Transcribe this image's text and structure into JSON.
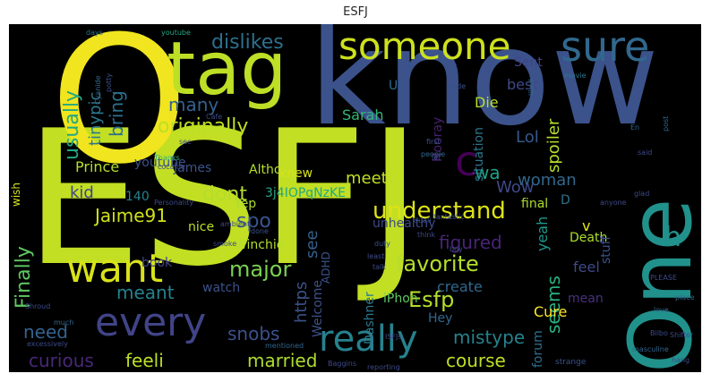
{
  "figure": {
    "title": "ESFJ"
  },
  "wordcloud": {
    "background": "#000000",
    "words": [
      {
        "text": "ESFJ",
        "color": "#c2df23"
      },
      {
        "text": "know",
        "color": "#3b528b"
      },
      {
        "text": "O",
        "color": "#f0e51e"
      },
      {
        "text": "One",
        "color": "#21918c"
      },
      {
        "text": "tag",
        "color": "#bddf26"
      },
      {
        "text": "someone",
        "color": "#cde11d"
      },
      {
        "text": "sure",
        "color": "#31688e"
      },
      {
        "text": "want",
        "color": "#d8e219"
      },
      {
        "text": "every",
        "color": "#414487"
      },
      {
        "text": "really",
        "color": "#26828e"
      },
      {
        "text": "understand",
        "color": "#dde318"
      },
      {
        "text": "favorite",
        "color": "#b5de2b"
      },
      {
        "text": "c",
        "color": "#440154"
      },
      {
        "text": "h",
        "color": "#21918c"
      },
      {
        "text": "Esfp",
        "color": "#b5de2b"
      },
      {
        "text": "Jaime91",
        "color": "#d0e11c"
      },
      {
        "text": "dont",
        "color": "#b5de2b"
      },
      {
        "text": "spo",
        "color": "#3a548c"
      },
      {
        "text": "major",
        "color": "#7ad151"
      },
      {
        "text": "meant",
        "color": "#26828e"
      },
      {
        "text": "originally",
        "color": "#bddf26"
      },
      {
        "text": "many",
        "color": "#34618d"
      },
      {
        "text": "dislikes",
        "color": "#2d708e"
      },
      {
        "text": "bring",
        "color": "#2d708e"
      },
      {
        "text": "usually",
        "color": "#22a884"
      },
      {
        "text": "tinypic",
        "color": "#2a788e"
      },
      {
        "text": "Finally",
        "color": "#5ec962"
      },
      {
        "text": "kid",
        "color": "#414487"
      },
      {
        "text": "need",
        "color": "#33638d"
      },
      {
        "text": "curious",
        "color": "#482878"
      },
      {
        "text": "feeli",
        "color": "#bddf26"
      },
      {
        "text": "married",
        "color": "#addc30"
      },
      {
        "text": "snobs",
        "color": "#3b528b"
      },
      {
        "text": "course",
        "color": "#bddf26"
      },
      {
        "text": "mistype",
        "color": "#26828e"
      },
      {
        "text": "seems",
        "color": "#29af7f"
      },
      {
        "text": "woman",
        "color": "#31688e"
      },
      {
        "text": "spoiler",
        "color": "#b5de2b"
      },
      {
        "text": "Lol",
        "color": "#38588c"
      },
      {
        "text": "Wow",
        "color": "#3e4a89"
      },
      {
        "text": "wa",
        "color": "#1fa187"
      },
      {
        "text": "meet",
        "color": "#c2df23"
      },
      {
        "text": "figured",
        "color": "#482475"
      },
      {
        "text": "create",
        "color": "#31688e"
      },
      {
        "text": "https",
        "color": "#3b528b"
      },
      {
        "text": "see",
        "color": "#34618d"
      },
      {
        "text": "Welcome",
        "color": "#3b528b"
      },
      {
        "text": "Dashner",
        "color": "#2a788e"
      },
      {
        "text": "iPhon",
        "color": "#5ec962"
      },
      {
        "text": "Cure",
        "color": "#fde725"
      },
      {
        "text": "forum",
        "color": "#2e6e8e"
      },
      {
        "text": "Hey",
        "color": "#31688e"
      },
      {
        "text": "yeah",
        "color": "#1f988b"
      },
      {
        "text": "feel",
        "color": "#3e4a89"
      },
      {
        "text": "Death",
        "color": "#addc30"
      },
      {
        "text": "stuff",
        "color": "#3b528b"
      },
      {
        "text": "v",
        "color": "#e5e419"
      },
      {
        "text": "mean",
        "color": "#46327e"
      },
      {
        "text": "final",
        "color": "#addc30"
      },
      {
        "text": "D",
        "color": "#2c728e"
      },
      {
        "text": "Die",
        "color": "#b5de2b"
      },
      {
        "text": "best",
        "color": "#3e4a89"
      },
      {
        "text": "situation",
        "color": "#2a788e"
      },
      {
        "text": "Hooray",
        "color": "#482071"
      },
      {
        "text": "Sarah",
        "color": "#35b779"
      },
      {
        "text": "Sent",
        "color": "#414487"
      },
      {
        "text": "U",
        "color": "#2e6e8e"
      },
      {
        "text": "Prince",
        "color": "#b5de2b"
      },
      {
        "text": "James",
        "color": "#3b528b"
      },
      {
        "text": "Altho",
        "color": "#b5de2b"
      },
      {
        "text": "knew",
        "color": "#d8e219"
      },
      {
        "text": "Yep",
        "color": "#addc30"
      },
      {
        "text": "Winchie",
        "color": "#b5de2b"
      },
      {
        "text": "nice",
        "color": "#bddf26"
      },
      {
        "text": "book",
        "color": "#414487"
      },
      {
        "text": "watch",
        "color": "#3b528b"
      },
      {
        "text": "youtube",
        "color": "#3b528b"
      },
      {
        "text": "140",
        "color": "#26828e"
      },
      {
        "text": "3j4IOPqNzKE",
        "color": "#22a884"
      },
      {
        "text": "wish",
        "color": "#d2e21b"
      },
      {
        "text": "unhealthy",
        "color": "#3e4a89"
      },
      {
        "text": "ADHD",
        "color": "#3b528b"
      },
      {
        "text": "days",
        "color": "#2a788e"
      },
      {
        "text": "youtube",
        "color": "#22a884"
      },
      {
        "text": "Personality",
        "color": "#3e4a89"
      },
      {
        "text": "post",
        "color": "#31688e"
      },
      {
        "text": "movie",
        "color": "#2a788e"
      },
      {
        "text": "liked",
        "color": "#31688e"
      },
      {
        "text": "potty",
        "color": "#3b528b"
      },
      {
        "text": "Cyanide",
        "color": "#31688e"
      },
      {
        "text": "PLEASE",
        "color": "#3e4a89"
      },
      {
        "text": "cocaine",
        "color": "#3e4a89"
      },
      {
        "text": "Thanks",
        "color": "#35b779"
      },
      {
        "text": "anyone",
        "color": "#3e4a89"
      },
      {
        "text": "hang",
        "color": "#3e4a89"
      },
      {
        "text": "masculine",
        "color": "#31688e"
      },
      {
        "text": "strange",
        "color": "#3b528b"
      },
      {
        "text": "reporting",
        "color": "#3e4a89"
      },
      {
        "text": "mentioned",
        "color": "#31688e"
      },
      {
        "text": "excessively",
        "color": "#3e4a89"
      },
      {
        "text": "much",
        "color": "#31688e"
      },
      {
        "text": "Shroud",
        "color": "#3e4a89"
      },
      {
        "text": "ambient",
        "color": "#3e4a89"
      },
      {
        "text": "done",
        "color": "#3b528b"
      },
      {
        "text": "smoke",
        "color": "#3e4a89"
      },
      {
        "text": "duali",
        "color": "#3b528b"
      },
      {
        "text": "fantastic",
        "color": "#3b528b"
      },
      {
        "text": "think",
        "color": "#3e4a89"
      },
      {
        "text": "people",
        "color": "#31688e"
      },
      {
        "text": "dude",
        "color": "#3b528b"
      },
      {
        "text": "talk",
        "color": "#3e4a89"
      },
      {
        "text": "least",
        "color": "#3e4a89"
      },
      {
        "text": "duty",
        "color": "#3b528b"
      },
      {
        "text": "boy",
        "color": "#3b528b"
      },
      {
        "text": "said",
        "color": "#3e4a89"
      },
      {
        "text": "love",
        "color": "#31688e"
      },
      {
        "text": "glad",
        "color": "#3e4a89"
      },
      {
        "text": "Shifter",
        "color": "#3e4a89"
      },
      {
        "text": "place",
        "color": "#31688e"
      },
      {
        "text": "Bilbo",
        "color": "#3e4a89"
      },
      {
        "text": "ISFJs",
        "color": "#3e4a89"
      },
      {
        "text": "let",
        "color": "#3e4a89"
      },
      {
        "text": "first",
        "color": "#3b528b"
      },
      {
        "text": "En",
        "color": "#31688e"
      },
      {
        "text": "sec",
        "color": "#3e4a89"
      },
      {
        "text": "Cafe",
        "color": "#3e4a89"
      },
      {
        "text": "Baggins",
        "color": "#3e4a89"
      }
    ]
  }
}
